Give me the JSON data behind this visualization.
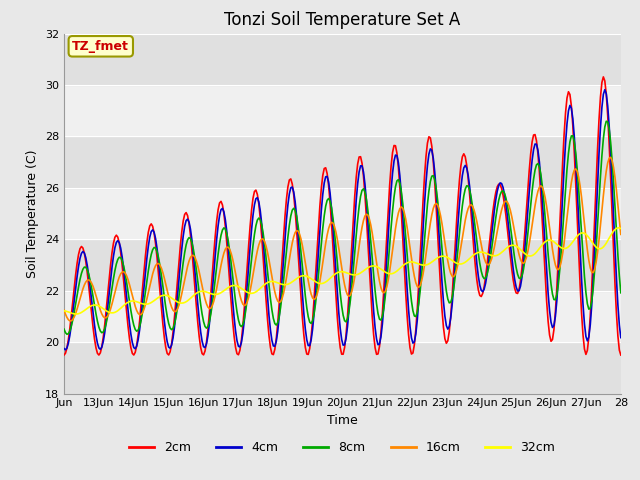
{
  "title": "Tonzi Soil Temperature Set A",
  "xlabel": "Time",
  "ylabel": "Soil Temperature (C)",
  "ylim": [
    18,
    32
  ],
  "xlim": [
    0,
    16
  ],
  "xtick_labels": [
    "Jun",
    "13Jun",
    "14Jun",
    "15Jun",
    "16Jun",
    "17Jun",
    "18Jun",
    "19Jun",
    "20Jun",
    "21Jun",
    "22Jun",
    "23Jun",
    "24Jun",
    "25Jun",
    "26Jun",
    "27Jun",
    "28"
  ],
  "annotation_text": "TZ_fmet",
  "annotation_box_facecolor": "#ffffcc",
  "annotation_text_color": "#cc0000",
  "annotation_edge_color": "#999900",
  "fig_facecolor": "#e8e8e8",
  "ax_facecolor": "#e0e0e0",
  "band_color": "#cccccc",
  "white_band_color": "#f0f0f0",
  "line_colors": {
    "2cm": "#ff0000",
    "4cm": "#0000cc",
    "8cm": "#00aa00",
    "16cm": "#ff8800",
    "32cm": "#ffff00"
  },
  "line_width": 1.2,
  "title_fontsize": 12,
  "label_fontsize": 9,
  "tick_fontsize": 8,
  "legend_fontsize": 9
}
